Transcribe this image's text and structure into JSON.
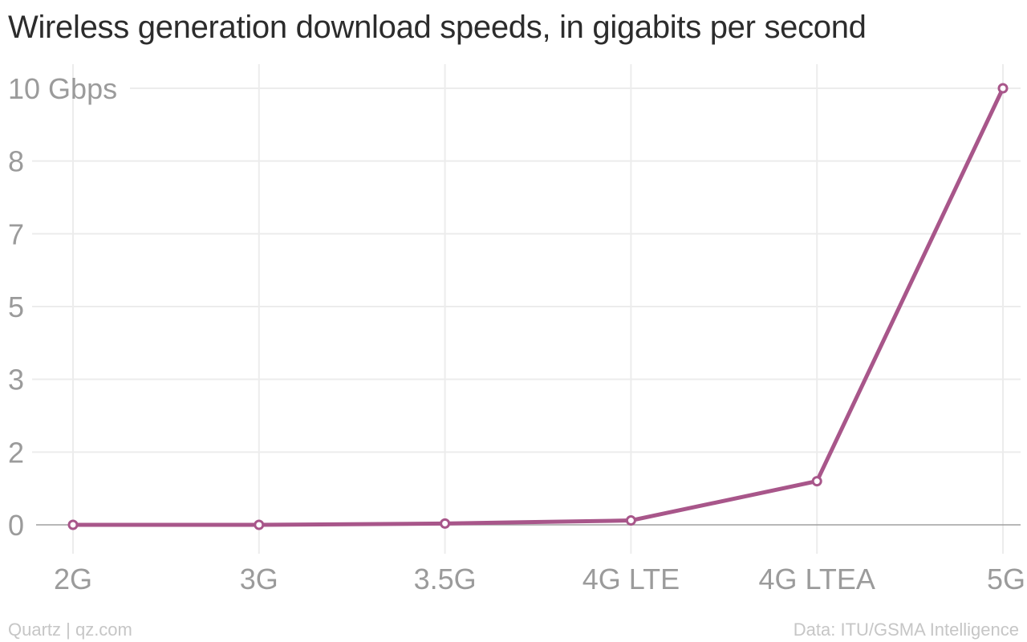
{
  "title": "Wireless generation download speeds, in gigabits per second",
  "footer": {
    "source_left": "Quartz | qz.com",
    "source_right": "Data: ITU/GSMA Intelligence"
  },
  "colors": {
    "line": "#a8568a",
    "grid": "#ececec",
    "baseline": "#a0a0a0",
    "tick_text": "#9b9b9b",
    "title_text": "#2c2c2c",
    "footer_text": "#c6c6c6"
  },
  "chart_data": {
    "type": "line",
    "title": "Wireless generation download speeds, in gigabits per second",
    "xlabel": "",
    "ylabel": "",
    "categories": [
      "2G",
      "3G",
      "3.5G",
      "4G LTE",
      "4G LTEA",
      "5G"
    ],
    "series": [
      {
        "values": [
          0.0,
          0.0,
          0.03,
          0.1,
          1.0,
          10.0
        ]
      }
    ],
    "y_ticks": [
      {
        "value": 0,
        "label": "0"
      },
      {
        "value": 1.667,
        "label": "2"
      },
      {
        "value": 3.333,
        "label": "3"
      },
      {
        "value": 5,
        "label": "5"
      },
      {
        "value": 6.667,
        "label": "7"
      },
      {
        "value": 8.333,
        "label": "8"
      },
      {
        "value": 10,
        "label": "10 Gbps"
      }
    ],
    "ylim": [
      0,
      10
    ],
    "grid": true,
    "markers": "hollow-circle"
  }
}
